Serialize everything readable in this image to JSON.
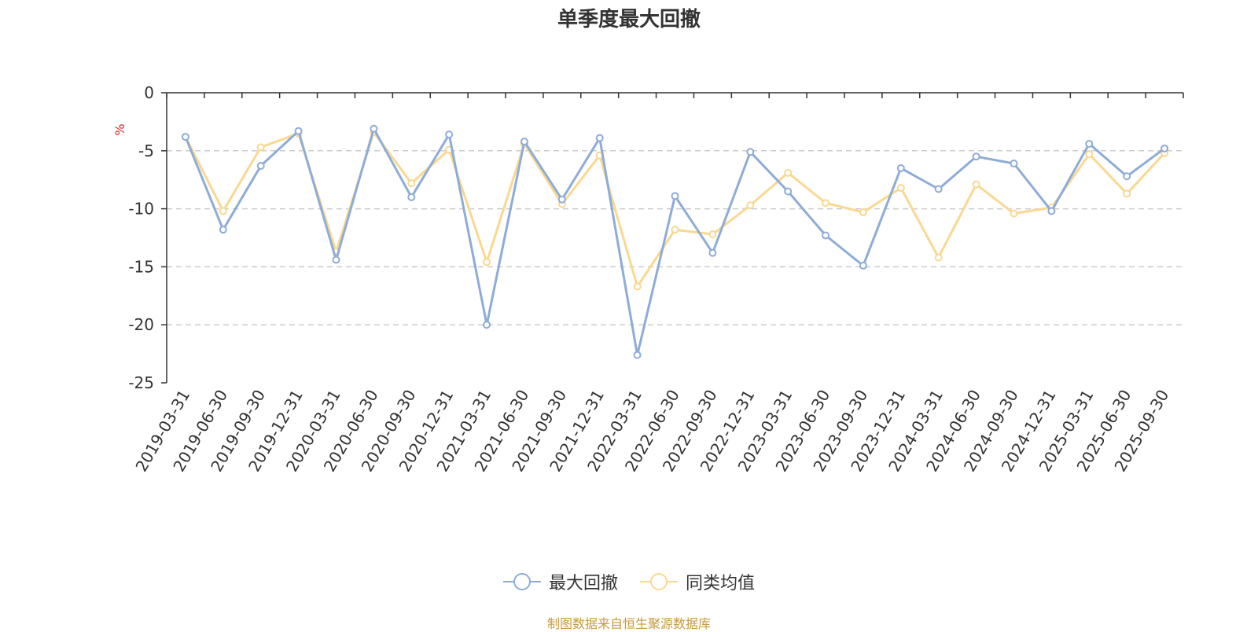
{
  "chart_data": {
    "type": "line",
    "title": "单季度最大回撤",
    "ylabel": "%",
    "xlabel": "",
    "ylim": [
      -25,
      0
    ],
    "yticks": [
      0,
      -5,
      -10,
      -15,
      -20,
      -25
    ],
    "grid": "horizontal dashed",
    "legend_position": "bottom",
    "categories": [
      "2019-03-31",
      "2019-06-30",
      "2019-09-30",
      "2019-12-31",
      "2020-03-31",
      "2020-06-30",
      "2020-09-30",
      "2020-12-31",
      "2021-03-31",
      "2021-06-30",
      "2021-09-30",
      "2021-12-31",
      "2022-03-31",
      "2022-06-30",
      "2022-09-30",
      "2022-12-31",
      "2023-03-31",
      "2023-06-30",
      "2023-09-30",
      "2023-12-31",
      "2024-03-31",
      "2024-06-30",
      "2024-09-30",
      "2024-12-31",
      "2025-03-31",
      "2025-06-30",
      "2025-09-30"
    ],
    "series": [
      {
        "name": "最大回撤",
        "color": "#8eacd8",
        "values": [
          -3.8,
          -11.8,
          -6.3,
          -3.3,
          -14.4,
          -3.1,
          -9.0,
          -3.6,
          -20.0,
          -4.2,
          -9.2,
          -3.9,
          -22.6,
          -8.9,
          -13.8,
          -5.1,
          -8.5,
          -12.3,
          -14.9,
          -6.5,
          -8.3,
          -5.5,
          -6.1,
          -10.2,
          -4.4,
          -7.2,
          -4.8
        ]
      },
      {
        "name": "同类均值",
        "color": "#f9d891",
        "values": [
          -3.8,
          -10.2,
          -4.7,
          -3.5,
          -13.7,
          -3.4,
          -7.8,
          -4.9,
          -14.6,
          -4.4,
          -9.6,
          -5.4,
          -16.7,
          -11.8,
          -12.2,
          -9.7,
          -6.9,
          -9.5,
          -10.3,
          -8.2,
          -14.2,
          -7.9,
          -10.4,
          -9.9,
          -5.3,
          -8.7,
          -5.2
        ]
      }
    ]
  },
  "footer": "制图数据来自恒生聚源数据库"
}
